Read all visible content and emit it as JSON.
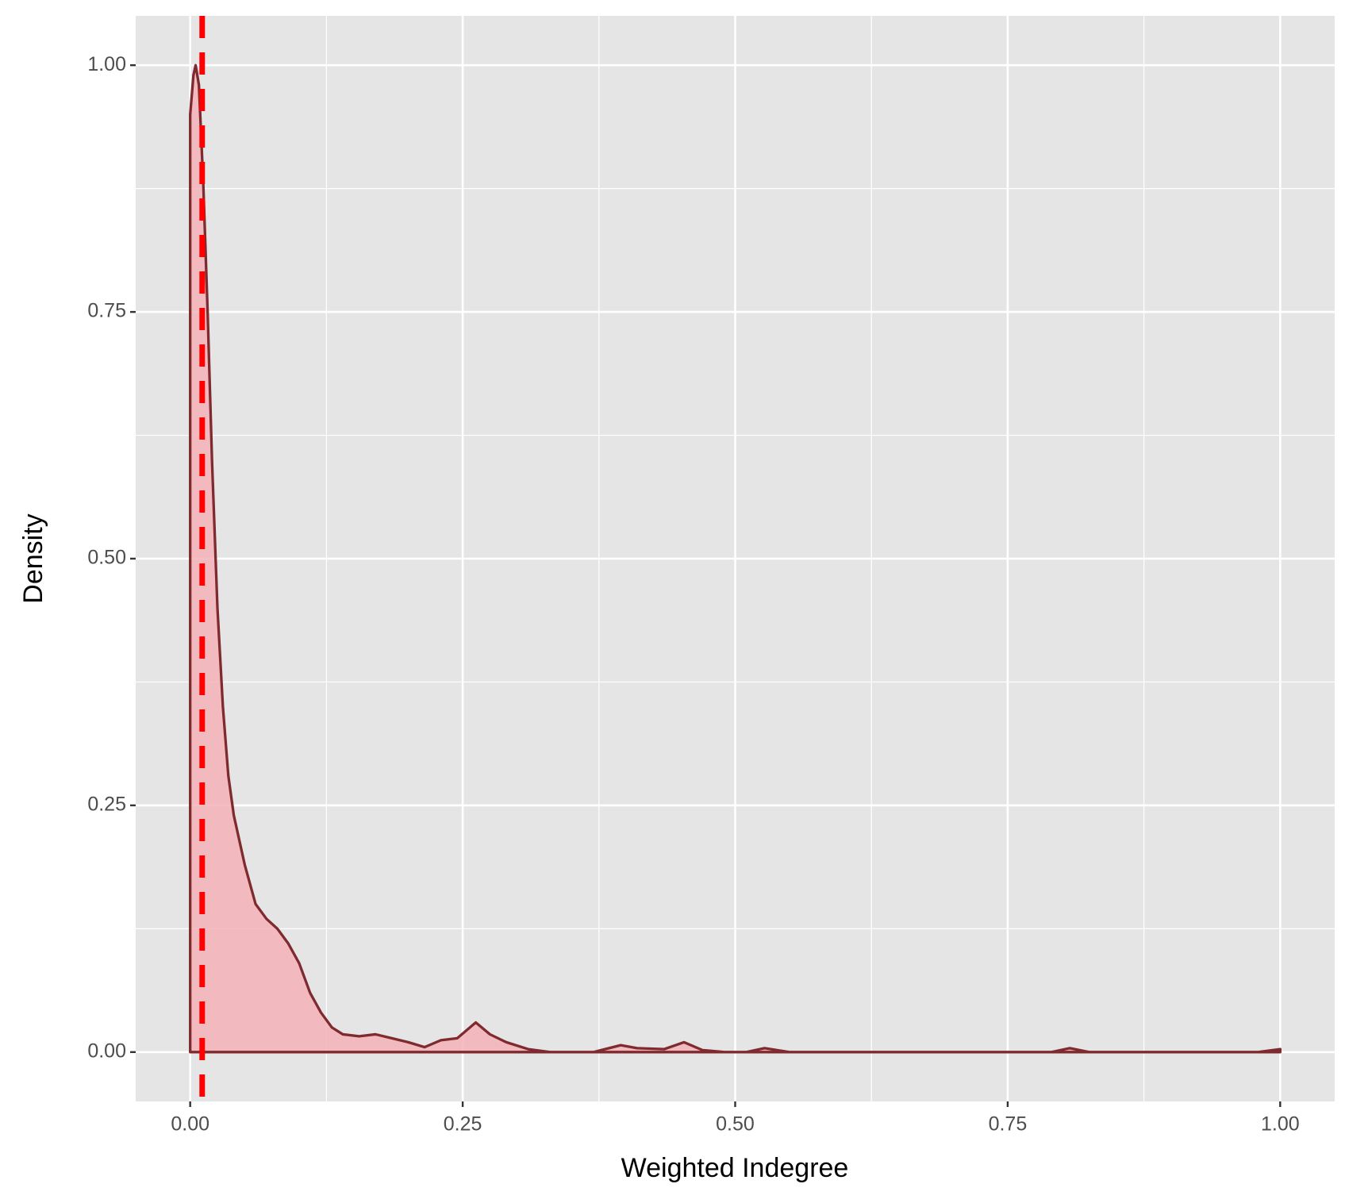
{
  "chart_data": {
    "type": "density",
    "x_label": "Weighted Indegree",
    "y_label": "Density",
    "series": [
      {
        "name": "density",
        "color": "#7f2a2e",
        "fill": "#f4b3b8",
        "x": [
          0,
          0.003,
          0.005,
          0.008,
          0.012,
          0.016,
          0.02,
          0.025,
          0.03,
          0.035,
          0.04,
          0.05,
          0.06,
          0.07,
          0.08,
          0.09,
          0.1,
          0.11,
          0.12,
          0.13,
          0.14,
          0.155,
          0.17,
          0.185,
          0.2,
          0.215,
          0.23,
          0.245,
          0.262,
          0.275,
          0.29,
          0.31,
          0.33,
          0.37,
          0.395,
          0.41,
          0.435,
          0.453,
          0.47,
          0.49,
          0.51,
          0.527,
          0.55,
          0.79,
          0.807,
          0.825,
          0.98,
          1.0
        ],
        "values": [
          0.95,
          0.99,
          1.0,
          0.98,
          0.88,
          0.75,
          0.6,
          0.45,
          0.35,
          0.28,
          0.24,
          0.19,
          0.15,
          0.135,
          0.125,
          0.11,
          0.09,
          0.06,
          0.04,
          0.025,
          0.018,
          0.016,
          0.018,
          0.014,
          0.01,
          0.005,
          0.012,
          0.014,
          0.03,
          0.018,
          0.01,
          0.003,
          0,
          0,
          0.007,
          0.004,
          0.003,
          0.01,
          0.002,
          0,
          0,
          0.004,
          0,
          0,
          0.004,
          0,
          0,
          0.003
        ]
      }
    ],
    "reference_line": {
      "x": 0.011,
      "color": "#ff0000"
    },
    "xlim": [
      -0.05,
      1.05
    ],
    "xticks": [
      {
        "value": 0,
        "label": "0.00"
      },
      {
        "value": 0.25,
        "label": "0.25"
      },
      {
        "value": 0.5,
        "label": "0.50"
      },
      {
        "value": 0.75,
        "label": "0.75"
      },
      {
        "value": 1,
        "label": "1.00"
      }
    ],
    "ylim": [
      -0.05,
      1.05
    ],
    "yticks": [
      {
        "value": 0,
        "label": "0.00"
      },
      {
        "value": 0.25,
        "label": "0.25"
      },
      {
        "value": 0.5,
        "label": "0.50"
      },
      {
        "value": 0.75,
        "label": "0.75"
      },
      {
        "value": 1,
        "label": "1.00"
      }
    ],
    "grid": true
  }
}
